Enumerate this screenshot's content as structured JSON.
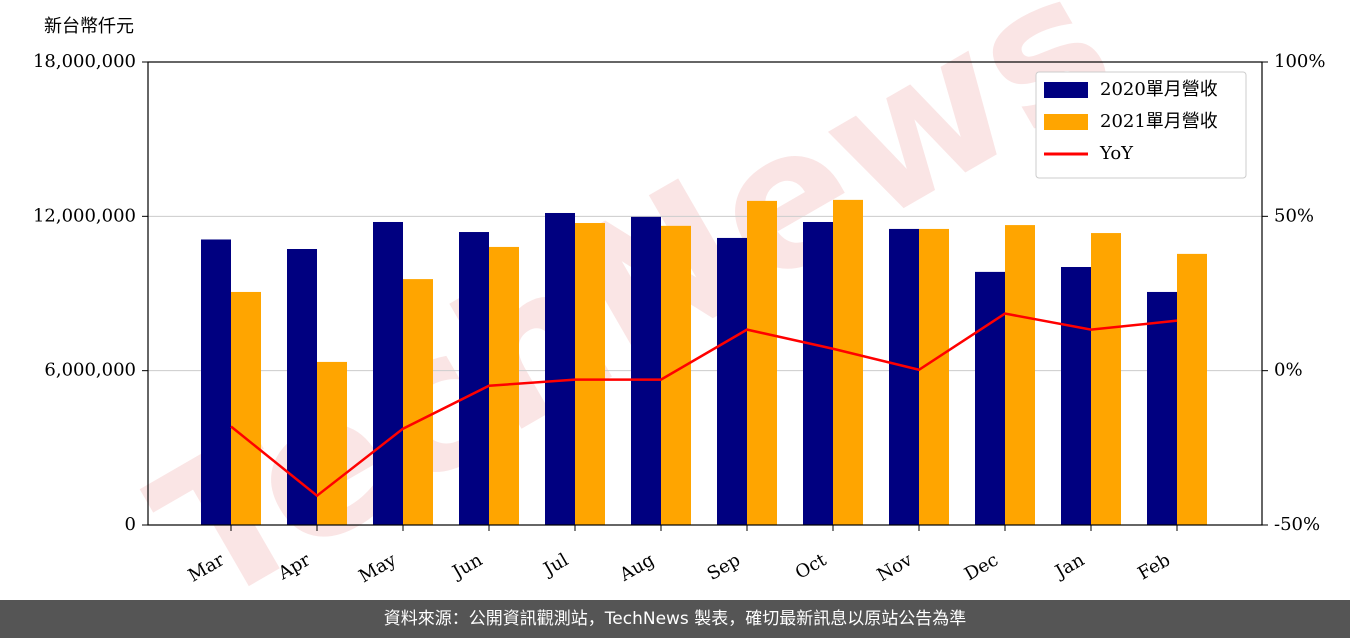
{
  "chart_data": {
    "type": "bar",
    "y_label": "新台幣仟元",
    "categories": [
      "Mar",
      "Apr",
      "May",
      "Jun",
      "Jul",
      "Aug",
      "Sep",
      "Oct",
      "Nov",
      "Dec",
      "Jan",
      "Feb"
    ],
    "series": [
      {
        "name": "2020單月營收",
        "color": "#000080",
        "values": [
          11100000,
          10730000,
          11780000,
          11390000,
          12130000,
          11980000,
          11160000,
          11780000,
          11510000,
          9840000,
          10030000,
          9060000
        ]
      },
      {
        "name": "2021單月營收",
        "color": "#ffa500",
        "values": [
          9060000,
          6340000,
          9560000,
          10810000,
          11740000,
          11630000,
          12600000,
          12640000,
          11510000,
          11660000,
          11350000,
          10540000
        ]
      },
      {
        "name": "YoY",
        "type": "line",
        "axis": "y2",
        "color": "#ff0000",
        "values": [
          -18.1,
          -40.5,
          -18.8,
          -4.9,
          -2.9,
          -2.9,
          13.3,
          7.1,
          0.3,
          18.5,
          13.3,
          16.2
        ]
      }
    ],
    "ylim": [
      0,
      18000000
    ],
    "yticks": [
      0,
      {
        "value": 6000000,
        "label": "6,000,000"
      },
      {
        "value": 12000000,
        "label": "12,000,000"
      },
      {
        "value": 18000000,
        "label": "18,000,000"
      }
    ],
    "y2lim": [
      -50,
      100
    ],
    "y2ticks": [
      {
        "value": -50,
        "label": "-50%"
      },
      {
        "value": 0,
        "label": "0%"
      },
      {
        "value": 50,
        "label": "50%"
      },
      {
        "value": 100,
        "label": "100%"
      }
    ],
    "grid": true,
    "legend": "upper right"
  },
  "watermark": "TechNews",
  "footer": "資料來源：公開資訊觀測站，TechNews 製表，確切最新訊息以原站公告為準"
}
